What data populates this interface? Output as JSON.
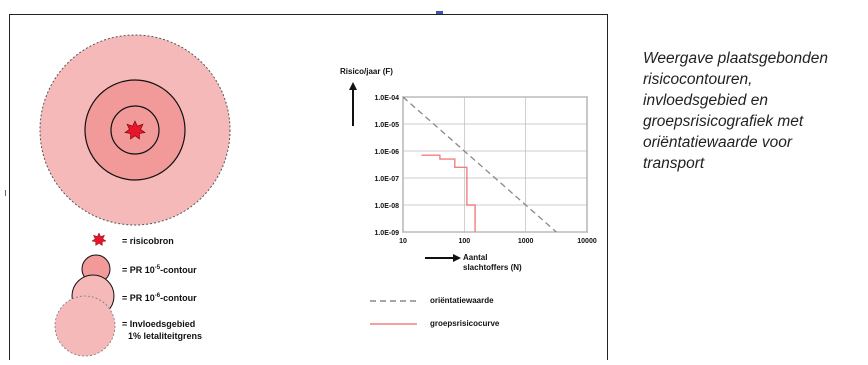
{
  "caption": {
    "lines": [
      "Weergave plaatsgebonden",
      "risicocontouren,",
      "invloedsgebied en",
      "groepsrisicografiek met",
      "oriëntatiewaarde voor",
      "transport"
    ]
  },
  "legend_left": {
    "source": "= risicobron",
    "pr5_prefix": "= PR 10",
    "pr5_exp": "-5",
    "pr5_suffix": "-contour",
    "pr6_prefix": "= PR 10",
    "pr6_exp": "-6",
    "pr6_suffix": "-contour",
    "influence_line1": "= Invloedsgebied",
    "influence_line2": "1% letaliteitgrens"
  },
  "legend_right": {
    "orientation": "oriëntatiewaarde",
    "group_risk": "groepsrisicocurve"
  },
  "colors": {
    "zone_fill": "#f6b9b9",
    "contour_fill": "#f29a9a",
    "source_star": "#e8162a",
    "orientation_line": "#888888",
    "group_curve": "#f08080"
  },
  "chart_data": {
    "type": "line",
    "ylabel": "Risico/jaar (F)",
    "xlabel_line1": "Aantal",
    "xlabel_line2": "slachtoffers (N)",
    "x_scale": "log",
    "y_scale": "log",
    "xlim": [
      10,
      10000
    ],
    "ylim": [
      1e-09,
      0.0001
    ],
    "x_ticks": [
      10,
      100,
      1000,
      10000
    ],
    "x_tick_labels": [
      "10",
      "100",
      "1000",
      "10000"
    ],
    "y_ticks": [
      0.0001,
      1e-05,
      1e-06,
      1e-07,
      1e-08,
      1e-09
    ],
    "y_tick_labels": [
      "1.0E-04",
      "1.0E-05",
      "1.0E-06",
      "1.0E-07",
      "1.0E-08",
      "1.0E-09"
    ],
    "grid": true,
    "series": [
      {
        "name": "oriëntatiewaarde",
        "style": "dashed",
        "points": [
          [
            10,
            0.0001
          ],
          [
            100,
            1e-06
          ],
          [
            1000,
            1e-08
          ],
          [
            3160,
            1e-09
          ]
        ]
      },
      {
        "name": "groepsrisicocurve",
        "style": "solid",
        "points": [
          [
            20,
            7e-07
          ],
          [
            40,
            7e-07
          ],
          [
            40,
            5e-07
          ],
          [
            70,
            5e-07
          ],
          [
            70,
            2.5e-07
          ],
          [
            110,
            2.5e-07
          ],
          [
            110,
            1e-08
          ],
          [
            150,
            1e-08
          ],
          [
            150,
            1e-09
          ]
        ]
      }
    ]
  }
}
